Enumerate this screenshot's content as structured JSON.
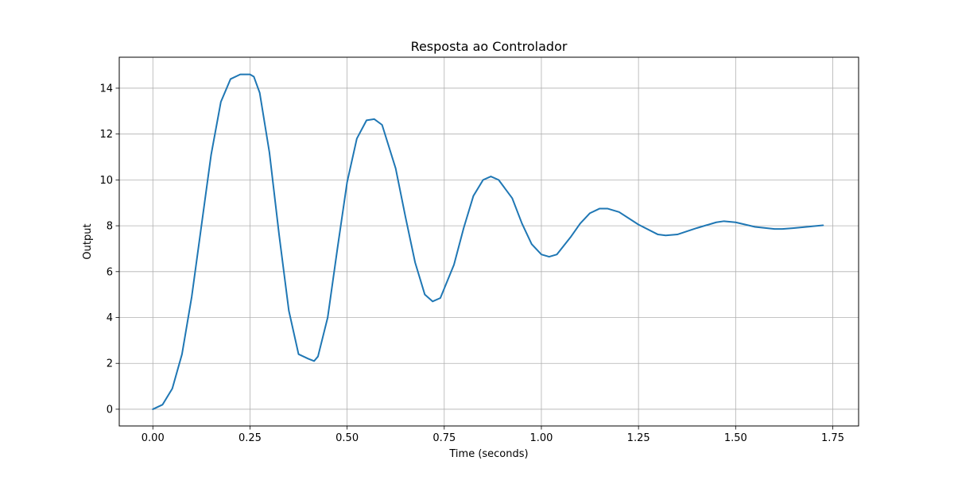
{
  "chart_data": {
    "type": "line",
    "title": "Resposta ao Controlador",
    "xlabel": "Time (seconds)",
    "ylabel": "Output",
    "xlim": [
      -0.0865,
      1.8165
    ],
    "ylim": [
      -0.73,
      15.35
    ],
    "xticks": [
      0.0,
      0.25,
      0.5,
      0.75,
      1.0,
      1.25,
      1.5,
      1.75
    ],
    "xtick_labels": [
      "0.00",
      "0.25",
      "0.50",
      "0.75",
      "1.00",
      "1.25",
      "1.50",
      "1.75"
    ],
    "yticks": [
      0,
      2,
      4,
      6,
      8,
      10,
      12,
      14
    ],
    "ytick_labels": [
      "0",
      "2",
      "4",
      "6",
      "8",
      "10",
      "12",
      "14"
    ],
    "grid": true,
    "legend": "none",
    "series": [
      {
        "color": "#1f77b4",
        "x": [
          0.0,
          0.025,
          0.05,
          0.075,
          0.1,
          0.125,
          0.15,
          0.175,
          0.2,
          0.225,
          0.25,
          0.26,
          0.275,
          0.3,
          0.325,
          0.35,
          0.375,
          0.4,
          0.415,
          0.425,
          0.45,
          0.475,
          0.5,
          0.525,
          0.55,
          0.57,
          0.59,
          0.625,
          0.65,
          0.675,
          0.7,
          0.72,
          0.74,
          0.775,
          0.8,
          0.825,
          0.85,
          0.87,
          0.89,
          0.925,
          0.95,
          0.975,
          1.0,
          1.02,
          1.04,
          1.075,
          1.1,
          1.125,
          1.15,
          1.17,
          1.2,
          1.25,
          1.3,
          1.32,
          1.35,
          1.4,
          1.45,
          1.47,
          1.5,
          1.55,
          1.6,
          1.62,
          1.65,
          1.7,
          1.725
        ],
        "y": [
          0.0,
          0.2,
          0.9,
          2.4,
          4.9,
          8.0,
          11.1,
          13.4,
          14.4,
          14.6,
          14.6,
          14.5,
          13.8,
          11.2,
          7.6,
          4.3,
          2.4,
          2.2,
          2.1,
          2.3,
          4.0,
          7.0,
          9.9,
          11.8,
          12.6,
          12.65,
          12.4,
          10.5,
          8.4,
          6.4,
          5.0,
          4.7,
          4.85,
          6.3,
          7.9,
          9.3,
          10.0,
          10.15,
          10.0,
          9.2,
          8.1,
          7.2,
          6.75,
          6.65,
          6.75,
          7.5,
          8.1,
          8.55,
          8.75,
          8.75,
          8.6,
          8.05,
          7.62,
          7.58,
          7.62,
          7.9,
          8.15,
          8.2,
          8.15,
          7.95,
          7.86,
          7.86,
          7.9,
          7.98,
          8.02
        ]
      }
    ]
  }
}
